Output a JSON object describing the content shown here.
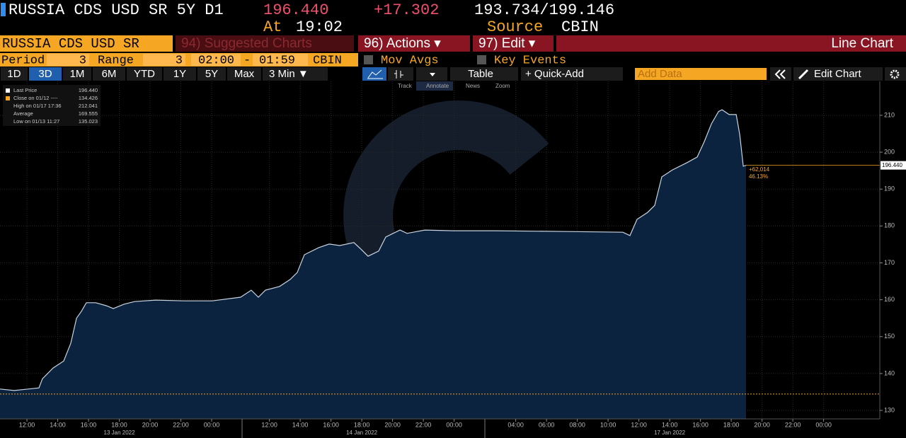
{
  "header": {
    "security": "RUSSIA CDS USD SR 5Y D1",
    "last": "196.440",
    "change": "+17.302",
    "bid_ask": "193.734/199.146",
    "time_label": "At",
    "time": "19:02",
    "source_label": "Source",
    "source": "CBIN"
  },
  "menu": {
    "ticker": "RUSSIA CDS USD SR",
    "suggested": "94) Suggested Charts",
    "actions": "96) Actions ▾",
    "edit": "97) Edit ▾",
    "view": "Line Chart"
  },
  "settings": {
    "period_label": "Period",
    "period": "3",
    "range_label": "Range",
    "range": "3",
    "start": "02:00",
    "dash": "-",
    "end": "01:59",
    "source": "CBIN",
    "mov_avgs": "Mov Avgs",
    "key_events": "Key Events"
  },
  "toolbar": {
    "ranges": [
      "1D",
      "3D",
      "1M",
      "6M",
      "YTD",
      "1Y",
      "5Y",
      "Max"
    ],
    "active": "3D",
    "interval": "3 Min ▼",
    "table": "Table",
    "quick_add": "+ Quick-Add",
    "add_data": "Add Data",
    "edit_chart": "Edit Chart",
    "tools": [
      "Track",
      "Annotate",
      "News",
      "Zoom"
    ]
  },
  "chart_data": {
    "type": "area",
    "legend": [
      {
        "name": "Last Price",
        "value": "196.440"
      },
      {
        "name": "Close on 01/12 ----",
        "value": "134.426"
      },
      {
        "name": "High on 01/17 17:36",
        "value": "212.041"
      },
      {
        "name": "Average",
        "value": "169.555"
      },
      {
        "name": "Low on 01/13 11:27",
        "value": "135.023"
      }
    ],
    "x": [
      0,
      0.92,
      1.84,
      2.53,
      2.76,
      3.45,
      4.14,
      4.6,
      4.97,
      5.29,
      5.61,
      6.21,
      6.9,
      7.36,
      8.05,
      8.74,
      10.11,
      11.95,
      13.79,
      15.63,
      16.32,
      16.78,
      17.24,
      18.16,
      18.85,
      19.31,
      19.77,
      20.69,
      21.38,
      22.07,
      22.99,
      23.45,
      23.91,
      24.6,
      25.06,
      25.98,
      26.44,
      27.59,
      29.43,
      32.18,
      36.78,
      40.46,
      40.92,
      41.38,
      42.07,
      42.53,
      42.99,
      43.68,
      44.6,
      45.29,
      45.75,
      46.21,
      46.67,
      46.9,
      47.36,
      47.82,
      48.05,
      48.28,
      48.46
    ],
    "series": [
      {
        "name": "Last Price",
        "color": "#c8d4e0",
        "fill": "#0c2340",
        "values": [
          135.8,
          135.4,
          135.8,
          136.1,
          138.6,
          141.5,
          143.4,
          148.2,
          155,
          156.9,
          159.2,
          159.2,
          158.4,
          157.6,
          158.8,
          159.5,
          159.9,
          159.7,
          159.7,
          160.7,
          162.6,
          160.7,
          162.6,
          163.6,
          165.5,
          167.4,
          172.2,
          174.1,
          175.1,
          174.7,
          175.5,
          173.7,
          171.8,
          173.2,
          177,
          178.9,
          178,
          178.9,
          178.7,
          178.7,
          178.5,
          178.3,
          177.4,
          181.8,
          183.7,
          185.6,
          193.3,
          195.2,
          197.1,
          198.7,
          202.9,
          207.7,
          211,
          211.5,
          210.2,
          210.2,
          204.8,
          196.2,
          196.44
        ]
      }
    ],
    "last_line": {
      "value": 196.44,
      "label": "196.440",
      "change": "+62,014",
      "percent": "46.13%",
      "color": "#f5a623"
    },
    "close_line": {
      "value": 134.426,
      "color": "#f5a623"
    },
    "xlim": [
      0,
      57.15
    ],
    "ylim": [
      127.7,
      219.2
    ],
    "yticks": [
      130,
      140,
      150,
      160,
      170,
      180,
      190,
      200,
      210
    ],
    "xticks": [
      {
        "value": 1.75,
        "label": "12:00"
      },
      {
        "value": 3.75,
        "label": "14:00"
      },
      {
        "value": 5.75,
        "label": "16:00"
      },
      {
        "value": 7.75,
        "label": "18:00"
      },
      {
        "value": 9.75,
        "label": "20:00"
      },
      {
        "value": 11.75,
        "label": "22:00"
      },
      {
        "value": 13.75,
        "label": "00:00"
      },
      {
        "value": 17.5,
        "label": "12:00"
      },
      {
        "value": 19.5,
        "label": "14:00"
      },
      {
        "value": 21.5,
        "label": "16:00"
      },
      {
        "value": 23.5,
        "label": "18:00"
      },
      {
        "value": 25.5,
        "label": "20:00"
      },
      {
        "value": 27.5,
        "label": "22:00"
      },
      {
        "value": 29.5,
        "label": "00:00"
      },
      {
        "value": 33.5,
        "label": "04:00"
      },
      {
        "value": 35.5,
        "label": "06:00"
      },
      {
        "value": 37.5,
        "label": "08:00"
      },
      {
        "value": 39.5,
        "label": "10:00"
      },
      {
        "value": 41.5,
        "label": "12:00"
      },
      {
        "value": 43.5,
        "label": "14:00"
      },
      {
        "value": 45.5,
        "label": "16:00"
      },
      {
        "value": 47.5,
        "label": "18:00"
      },
      {
        "value": 49.5,
        "label": "20:00"
      },
      {
        "value": 51.5,
        "label": "22:00"
      },
      {
        "value": 53.5,
        "label": "00:00"
      }
    ],
    "dates": [
      {
        "value": 7.75,
        "label": "13 Jan 2022"
      },
      {
        "value": 23.5,
        "label": "14 Jan 2022"
      },
      {
        "value": 43.5,
        "label": "17 Jan 2022"
      }
    ],
    "grid": true
  }
}
